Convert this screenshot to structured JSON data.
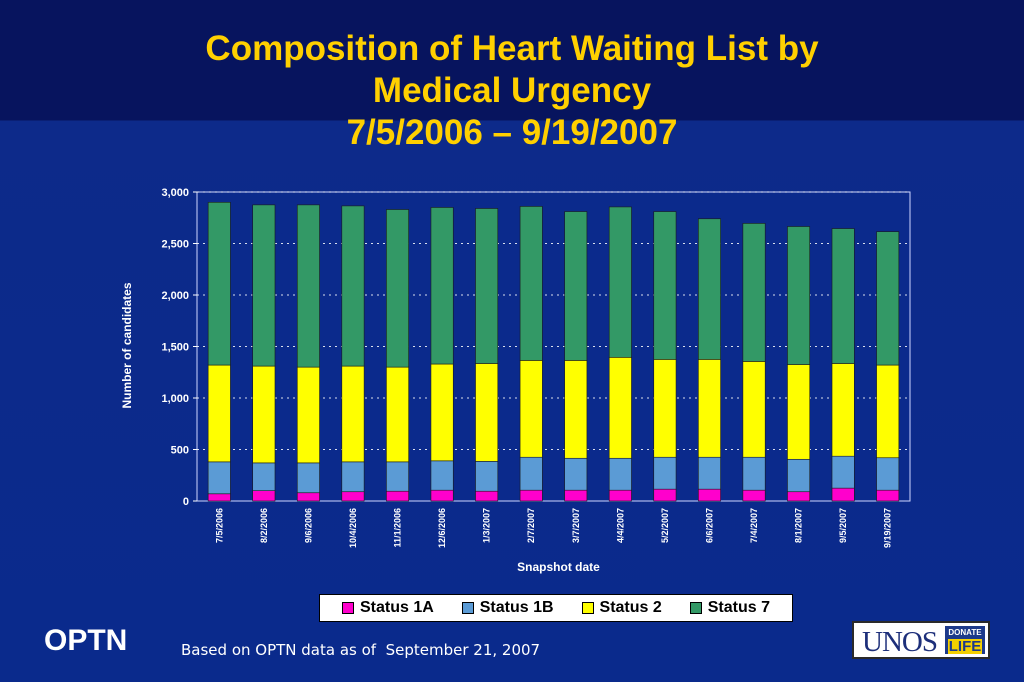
{
  "title": {
    "line1": "Composition of Heart Waiting List by",
    "line2": "Medical Urgency",
    "line3": "7/5/2006 – 9/19/2007"
  },
  "chart_data": {
    "type": "bar",
    "stacked": true,
    "categories": [
      "7/5/2006",
      "8/2/2006",
      "9/6/2006",
      "10/4/2006",
      "11/1/2006",
      "12/6/2006",
      "1/3/2007",
      "2/7/2007",
      "3/7/2007",
      "4/4/2007",
      "5/2/2007",
      "6/6/2007",
      "7/4/2007",
      "8/1/2007",
      "9/5/2007",
      "9/19/2007"
    ],
    "series": [
      {
        "name": "Status 1A",
        "color": "#ff00cc",
        "values": [
          70,
          100,
          80,
          90,
          95,
          105,
          95,
          105,
          105,
          105,
          115,
          115,
          105,
          90,
          125,
          105
        ]
      },
      {
        "name": "Status 1B",
        "color": "#5b9bd5",
        "values": [
          310,
          270,
          290,
          290,
          285,
          285,
          290,
          320,
          310,
          310,
          310,
          310,
          320,
          315,
          310,
          315
        ]
      },
      {
        "name": "Status 2",
        "color": "#ffff00",
        "values": [
          940,
          940,
          930,
          930,
          920,
          940,
          950,
          940,
          950,
          980,
          950,
          950,
          930,
          920,
          900,
          900
        ]
      },
      {
        "name": "Status 7",
        "color": "#339966",
        "values": [
          1580,
          1565,
          1575,
          1555,
          1530,
          1520,
          1505,
          1495,
          1445,
          1460,
          1435,
          1365,
          1340,
          1340,
          1310,
          1295
        ]
      }
    ],
    "xlabel": "Snapshot date",
    "ylabel": "Number of candidates",
    "ylim": [
      0,
      3000
    ],
    "yticks": [
      0,
      500,
      1000,
      1500,
      2000,
      2500,
      3000
    ],
    "ytick_labels": [
      "0",
      "500",
      "1,000",
      "1,500",
      "2,000",
      "2,500",
      "3,000"
    ],
    "grid": true,
    "legend_position": "bottom"
  },
  "footer": {
    "logo_text": "OPTN",
    "source": "Based on OPTN data as of  September 21, 2007",
    "unos_logo": {
      "name": "UNOS",
      "badge_top": "DONATE",
      "badge_bottom": "LIFE"
    }
  }
}
